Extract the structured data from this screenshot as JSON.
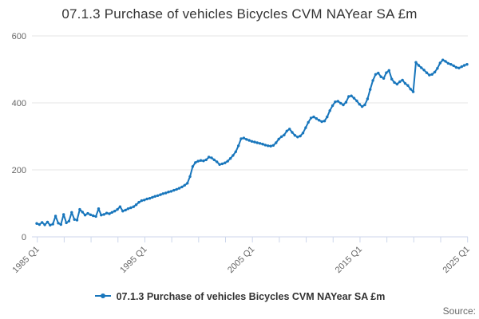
{
  "title": "07.1.3 Purchase of vehicles Bicycles CVM NAYear SA £m",
  "legend": {
    "label": "07.1.3 Purchase of vehicles Bicycles CVM NAYear SA £m"
  },
  "source_label": "Source:",
  "colors": {
    "line": "#1876bc",
    "grid": "#e6e6e6",
    "axis": "#ccd6eb",
    "tick_label": "#666666",
    "title_text": "#333333"
  },
  "chart_data": {
    "type": "line",
    "title": "07.1.3 Purchase of vehicles Bicycles CVM NAYear SA £m",
    "xlabel": "",
    "ylabel": "",
    "frequency": "quarterly",
    "x_start": "1985 Q1",
    "x_end": "2025 Q1",
    "x_tick_every_quarters": 10,
    "x_tick_labels": [
      "1985 Q1",
      "1995 Q1",
      "2005 Q1",
      "2015 Q1",
      "2025 Q1"
    ],
    "x_labeled_tick_interval": 4,
    "x_total_ticks": 17,
    "ylim": [
      0,
      600
    ],
    "y_ticks": [
      0,
      200,
      400,
      600
    ],
    "grid": "horizontal",
    "markers": true,
    "legend_position": "bottom-center",
    "series": [
      {
        "name": "07.1.3 Purchase of vehicles Bicycles CVM NAYear SA £m",
        "start": "1985 Q1",
        "values": [
          40,
          37,
          43,
          36,
          44,
          35,
          38,
          62,
          41,
          37,
          67,
          42,
          47,
          73,
          52,
          50,
          82,
          74,
          65,
          70,
          66,
          63,
          61,
          84,
          65,
          67,
          71,
          69,
          73,
          77,
          82,
          90,
          77,
          80,
          84,
          87,
          90,
          96,
          103,
          108,
          110,
          113,
          115,
          118,
          121,
          123,
          126,
          129,
          131,
          134,
          136,
          139,
          142,
          145,
          149,
          154,
          160,
          180,
          210,
          222,
          226,
          228,
          227,
          230,
          238,
          236,
          230,
          224,
          216,
          218,
          221,
          226,
          234,
          243,
          254,
          272,
          293,
          295,
          291,
          288,
          285,
          283,
          281,
          279,
          277,
          274,
          272,
          271,
          273,
          281,
          292,
          299,
          304,
          316,
          322,
          312,
          303,
          298,
          301,
          310,
          326,
          342,
          355,
          358,
          353,
          348,
          344,
          346,
          358,
          377,
          392,
          403,
          405,
          399,
          394,
          402,
          419,
          421,
          414,
          406,
          396,
          389,
          394,
          412,
          440,
          467,
          485,
          489,
          478,
          473,
          490,
          497,
          471,
          461,
          456,
          463,
          468,
          458,
          452,
          441,
          433,
          521,
          512,
          505,
          498,
          490,
          483,
          485,
          492,
          503,
          519,
          528,
          524,
          518,
          515,
          511,
          506,
          504,
          508,
          512,
          515
        ]
      }
    ]
  }
}
